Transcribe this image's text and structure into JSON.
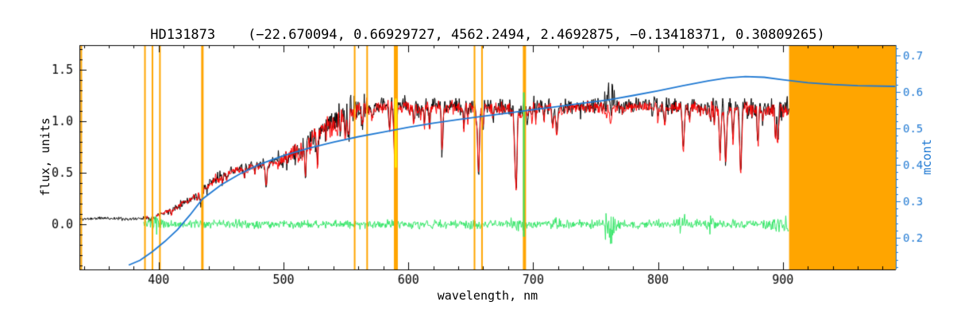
{
  "title": "HD131873    (−22.670094, 0.66929727, 4562.2494, 2.4692875, −0.13418371, 0.30809265)",
  "star_id": "HD131873",
  "fit_parameters": [
    -22.670094,
    0.66929727,
    4562.2494,
    2.4692875,
    -0.13418371,
    0.30809265
  ],
  "background": "#FFFFFF",
  "axes": {
    "x": {
      "label": "wavelength, nm",
      "min": 336.5,
      "max": 990.5,
      "major_ticks": [
        400,
        500,
        600,
        700,
        800,
        900
      ],
      "minor_step": 20,
      "color": "#000000"
    },
    "y_left": {
      "label": "flux, units",
      "min": -0.438,
      "max": 1.738,
      "major_ticks": [
        0,
        0.5,
        1,
        1.5
      ],
      "tick_labels": [
        "0.0",
        "0.5",
        "1.0",
        "1.5"
      ],
      "minor_step": 0.1,
      "color": "#000000"
    },
    "y_right": {
      "label": "mcont",
      "min": 0.113,
      "max": 0.728,
      "major_ticks": [
        0.2,
        0.3,
        0.4,
        0.5,
        0.6,
        0.7
      ],
      "tick_labels": [
        "0.2",
        "0.3",
        "0.4",
        "0.5",
        "0.6",
        "0.7"
      ],
      "minor_step": 0.02,
      "color": "#1E78D2"
    }
  },
  "chart_data": {
    "type": "line",
    "x_unit": "nm",
    "masked_region": {
      "color": "#FFA500",
      "from": 905,
      "to": 990.5
    },
    "marker_lines": {
      "color": "#FFA500",
      "items": [
        [
          338,
          2
        ],
        [
          389,
          2
        ],
        [
          395,
          2
        ],
        [
          401,
          2
        ],
        [
          435,
          3
        ],
        [
          557,
          2
        ],
        [
          567,
          2
        ],
        [
          590,
          5
        ],
        [
          653,
          2
        ],
        [
          659,
          2
        ],
        [
          693,
          4
        ]
      ]
    },
    "special_lines": [
      {
        "color": "#FFFF00",
        "wavelength": 590,
        "flux_from": 0.55,
        "flux_to": 1.22,
        "width": 2
      },
      {
        "color": "#33E566",
        "wavelength": 692.5,
        "flux_from": -0.12,
        "flux_to": 1.28,
        "width": 2
      }
    ],
    "absorption_lines": [
      [
        393.4,
        0.45,
        2.2
      ],
      [
        396.8,
        0.42,
        2.2
      ],
      [
        410.2,
        0.32,
        1.6
      ],
      [
        434.0,
        0.4,
        1.8
      ],
      [
        486.1,
        0.38,
        1.8
      ],
      [
        517.5,
        0.28,
        2.0
      ],
      [
        527.0,
        0.22,
        1.6
      ],
      [
        589.3,
        0.5,
        2.0
      ],
      [
        617.0,
        0.2,
        1.4
      ],
      [
        627.0,
        0.25,
        1.5
      ],
      [
        656.3,
        0.6,
        1.7
      ],
      [
        686.0,
        0.62,
        2.2
      ],
      [
        719.0,
        0.2,
        2.0
      ],
      [
        762.0,
        0.15,
        1.4
      ],
      [
        820.0,
        0.28,
        1.5
      ],
      [
        849.8,
        0.4,
        1.6
      ],
      [
        854.2,
        0.5,
        1.8
      ],
      [
        860.0,
        0.25,
        1.4
      ],
      [
        866.2,
        0.55,
        1.9
      ],
      [
        880.0,
        0.32,
        1.5
      ],
      [
        896.0,
        0.25,
        1.6
      ]
    ],
    "micro_lines": {
      "seed": 77,
      "start": 428,
      "end": 903,
      "prob": 0.38,
      "max_depth": 0.3
    },
    "noise_regions": [
      [
        405,
        450,
        1.5
      ],
      [
        495,
        568,
        1.9
      ],
      [
        840,
        905,
        1.3
      ]
    ],
    "series": [
      {
        "name": "observed-spectrum",
        "color": "#000000",
        "type": "noisy-line",
        "range": [
          337,
          905
        ],
        "step": 0.45,
        "noise_sigma": 0.028,
        "seed": 11,
        "envelope": [
          [
            337,
            0.05
          ],
          [
            355,
            0.06
          ],
          [
            370,
            0.055
          ],
          [
            378,
            0.05
          ],
          [
            384,
            0.055
          ],
          [
            390,
            0.07
          ],
          [
            396,
            0.085
          ],
          [
            402,
            0.105
          ],
          [
            408,
            0.13
          ],
          [
            414,
            0.17
          ],
          [
            420,
            0.21
          ],
          [
            426,
            0.25
          ],
          [
            432,
            0.29
          ],
          [
            438,
            0.36
          ],
          [
            444,
            0.43
          ],
          [
            450,
            0.47
          ],
          [
            457,
            0.51
          ],
          [
            464,
            0.54
          ],
          [
            471,
            0.56
          ],
          [
            478,
            0.57
          ],
          [
            485,
            0.585
          ],
          [
            492,
            0.61
          ],
          [
            499,
            0.63
          ],
          [
            506,
            0.67
          ],
          [
            513,
            0.73
          ],
          [
            520,
            0.81
          ],
          [
            527,
            0.88
          ],
          [
            534,
            0.95
          ],
          [
            541,
            1.02
          ],
          [
            548,
            1.07
          ],
          [
            555,
            1.1
          ],
          [
            562,
            1.12
          ],
          [
            570,
            1.14
          ],
          [
            580,
            1.155
          ],
          [
            590,
            1.15
          ],
          [
            600,
            1.16
          ],
          [
            610,
            1.15
          ],
          [
            620,
            1.155
          ],
          [
            630,
            1.15
          ],
          [
            640,
            1.155
          ],
          [
            650,
            1.14
          ],
          [
            660,
            1.15
          ],
          [
            670,
            1.15
          ],
          [
            680,
            1.13
          ],
          [
            690,
            1.12
          ],
          [
            700,
            1.15
          ],
          [
            710,
            1.145
          ],
          [
            720,
            1.13
          ],
          [
            730,
            1.145
          ],
          [
            740,
            1.15
          ],
          [
            750,
            1.155
          ],
          [
            760,
            1.17
          ],
          [
            770,
            1.15
          ],
          [
            780,
            1.155
          ],
          [
            790,
            1.155
          ],
          [
            800,
            1.16
          ],
          [
            810,
            1.15
          ],
          [
            820,
            1.15
          ],
          [
            830,
            1.15
          ],
          [
            840,
            1.14
          ],
          [
            850,
            1.12
          ],
          [
            860,
            1.13
          ],
          [
            870,
            1.14
          ],
          [
            880,
            1.14
          ],
          [
            890,
            1.13
          ],
          [
            900,
            1.12
          ],
          [
            905,
            1.12
          ]
        ],
        "emission_spikes": {
          "width": 0.5,
          "points": [
            [
              757.3,
              0.12
            ],
            [
              758.9,
              0.2
            ],
            [
              760.3,
              0.27
            ],
            [
              761.8,
              0.17
            ],
            [
              763.3,
              0.22
            ],
            [
              764.9,
              0.1
            ]
          ]
        }
      },
      {
        "name": "model-spectrum",
        "color": "#FF0000",
        "type": "noisy-line",
        "range": [
          388,
          905
        ],
        "step": 0.45,
        "noise_sigma": 0.021,
        "seed": 22,
        "envelope_scale": 0.985
      },
      {
        "name": "residual",
        "color": "#33E566",
        "type": "noisy-line",
        "range": [
          388,
          905
        ],
        "step": 0.45,
        "noise_sigma": 0.02,
        "seed": 33,
        "baseline": 0,
        "bursts": [
          [
            395,
            0.02,
            8
          ],
          [
            687,
            0.025,
            4
          ],
          [
            719,
            0.02,
            5
          ],
          [
            761,
            0.06,
            5
          ],
          [
            820,
            0.025,
            4
          ],
          [
            842,
            0.02,
            4
          ],
          [
            898,
            0.025,
            7
          ]
        ]
      },
      {
        "name": "mcont-continuum",
        "color": "#1E78D2",
        "type": "smooth-line",
        "axis": "right",
        "points": [
          [
            376,
            0.125
          ],
          [
            385,
            0.138
          ],
          [
            395,
            0.162
          ],
          [
            405,
            0.19
          ],
          [
            415,
            0.222
          ],
          [
            425,
            0.262
          ],
          [
            435,
            0.306
          ],
          [
            450,
            0.345
          ],
          [
            465,
            0.375
          ],
          [
            480,
            0.4
          ],
          [
            500,
            0.425
          ],
          [
            520,
            0.445
          ],
          [
            540,
            0.462
          ],
          [
            560,
            0.477
          ],
          [
            580,
            0.49
          ],
          [
            600,
            0.503
          ],
          [
            620,
            0.514
          ],
          [
            640,
            0.524
          ],
          [
            660,
            0.533
          ],
          [
            680,
            0.542
          ],
          [
            700,
            0.551
          ],
          [
            720,
            0.56
          ],
          [
            740,
            0.569
          ],
          [
            760,
            0.578
          ],
          [
            780,
            0.59
          ],
          [
            800,
            0.603
          ],
          [
            820,
            0.617
          ],
          [
            840,
            0.63
          ],
          [
            855,
            0.638
          ],
          [
            870,
            0.642
          ],
          [
            885,
            0.64
          ],
          [
            900,
            0.633
          ],
          [
            920,
            0.625
          ],
          [
            940,
            0.62
          ],
          [
            960,
            0.617
          ],
          [
            990,
            0.615
          ]
        ]
      }
    ]
  }
}
